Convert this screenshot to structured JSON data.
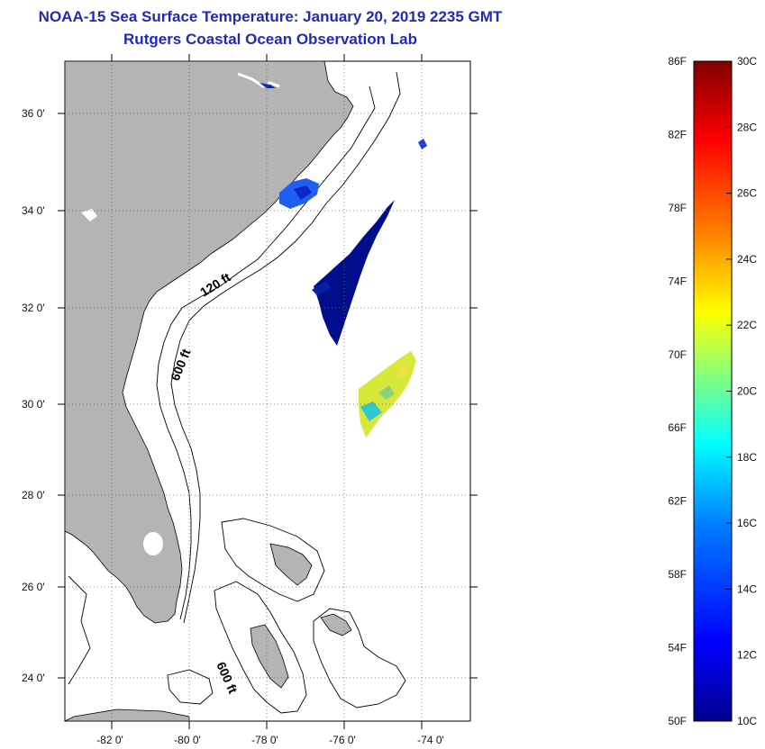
{
  "header": {
    "title": "NOAA-15 Sea Surface Temperature:  January 20, 2019 2235 GMT",
    "subtitle": "Rutgers Coastal Ocean Observation Lab"
  },
  "map": {
    "lon_ticks": [
      "-82 0'",
      "-80 0'",
      "-78 0'",
      "-76 0'",
      "-74 0'"
    ],
    "lat_ticks": [
      "36 0'",
      "34 0'",
      "32 0'",
      "30 0'",
      "28 0'",
      "26 0'",
      "24 0'"
    ],
    "contour_labels": [
      "120 ft",
      "600 ft",
      "600 ft"
    ],
    "land_color": "#b4b4b4"
  },
  "colorbar": {
    "f_labels": [
      "86F",
      "82F",
      "78F",
      "74F",
      "70F",
      "66F",
      "62F",
      "58F",
      "54F",
      "50F"
    ],
    "c_labels": [
      "30C",
      "28C",
      "26C",
      "24C",
      "22C",
      "20C",
      "18C",
      "16C",
      "14C",
      "12C",
      "10C"
    ],
    "colors": [
      "#00008f",
      "#0000ff",
      "#0080ff",
      "#00ffff",
      "#80ff80",
      "#ffff00",
      "#ff8000",
      "#ff0000",
      "#800000"
    ]
  }
}
